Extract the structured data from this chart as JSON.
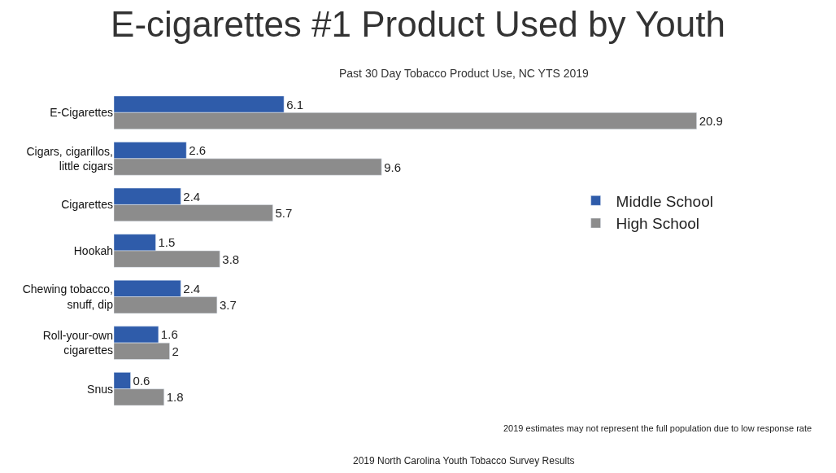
{
  "chart_data": {
    "type": "bar",
    "orientation": "horizontal",
    "title": "E-cigarettes #1 Product Used by Youth",
    "subtitle": "Past 30 Day Tobacco Product Use, NC YTS 2019",
    "categories": [
      "E-Cigarettes",
      "Cigars, cigarillos,\nlittle cigars",
      "Cigarettes",
      "Hookah",
      "Chewing tobacco,\nsnuff, dip",
      "Roll-your-own\ncigarettes",
      "Snus"
    ],
    "series": [
      {
        "name": "Middle School",
        "color": "#2f5caa",
        "values": [
          6.1,
          2.6,
          2.4,
          1.5,
          2.4,
          1.6,
          0.6
        ]
      },
      {
        "name": "High School",
        "color": "#8c8c8c",
        "values": [
          20.9,
          9.6,
          5.7,
          3.8,
          3.7,
          2,
          1.8
        ]
      }
    ],
    "data_labels": true,
    "legend": "right",
    "annotations": [
      "2019 estimates may not represent the full population due to low response rate",
      "2019 North Carolina Youth Tobacco Survey Results"
    ]
  }
}
